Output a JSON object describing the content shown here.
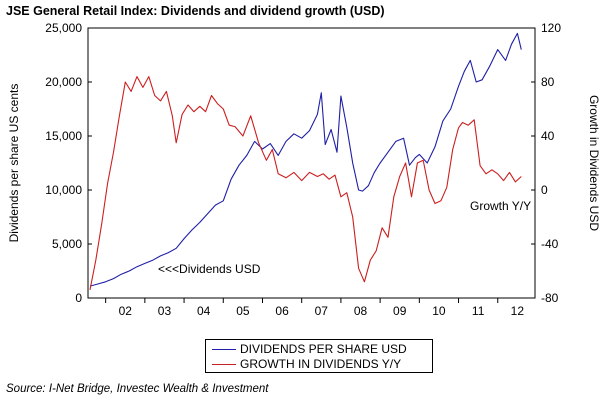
{
  "title": "JSE General Retail Index: Dividends and dividend growth (USD)",
  "source": "Source: I-Net Bridge, Investec Wealth & Investment",
  "colors": {
    "dividends": "#1f1fa8",
    "growth": "#cc1f1f"
  },
  "chart_data": {
    "type": "line",
    "x_labels": [
      "02",
      "03",
      "04",
      "05",
      "06",
      "07",
      "08",
      "09",
      "10",
      "11",
      "12"
    ],
    "xlim": [
      2001.55,
      2012.95
    ],
    "left_axis": {
      "label": "Dividends per share US cents",
      "ylim": [
        0,
        25000
      ],
      "ticks": [
        "0",
        "5,000",
        "10,000",
        "15,000",
        "20,000",
        "25,000"
      ]
    },
    "right_axis": {
      "label": "Growth in Dividends USD",
      "ylim": [
        -80,
        120
      ],
      "ticks": [
        "-80",
        "-40",
        "0",
        "40",
        "80",
        "120"
      ]
    },
    "annotations": [
      {
        "text": "<<<Dividends USD"
      },
      {
        "text": "Growth Y/Y"
      }
    ],
    "legend": {
      "placement": "bottom",
      "entries": [
        "DIVIDENDS PER SHARE USD",
        "GROWTH IN DIVIDENDS Y/Y"
      ]
    },
    "series": [
      {
        "name": "DIVIDENDS PER SHARE USD",
        "axis": "left",
        "x": [
          2001.6,
          2001.8,
          2002.0,
          2002.2,
          2002.4,
          2002.6,
          2002.8,
          2003.0,
          2003.2,
          2003.4,
          2003.6,
          2003.8,
          2004.0,
          2004.2,
          2004.4,
          2004.6,
          2004.8,
          2005.0,
          2005.2,
          2005.4,
          2005.6,
          2005.8,
          2006.0,
          2006.2,
          2006.4,
          2006.6,
          2006.8,
          2007.0,
          2007.2,
          2007.4,
          2007.5,
          2007.6,
          2007.75,
          2007.9,
          2008.0,
          2008.15,
          2008.3,
          2008.45,
          2008.55,
          2008.7,
          2008.85,
          2009.0,
          2009.2,
          2009.4,
          2009.6,
          2009.75,
          2009.9,
          2010.0,
          2010.2,
          2010.4,
          2010.6,
          2010.8,
          2011.0,
          2011.15,
          2011.3,
          2011.45,
          2011.6,
          2011.8,
          2012.0,
          2012.2,
          2012.35,
          2012.5,
          2012.6
        ],
        "values": [
          1100,
          1300,
          1500,
          1800,
          2200,
          2500,
          2900,
          3200,
          3500,
          3900,
          4200,
          4600,
          5500,
          6300,
          7000,
          7800,
          8600,
          9000,
          11000,
          12300,
          13200,
          14500,
          13800,
          14300,
          13200,
          14500,
          15200,
          14800,
          15500,
          17000,
          19000,
          14200,
          15600,
          13500,
          18700,
          15800,
          12500,
          10000,
          9900,
          10400,
          11600,
          12500,
          13500,
          14500,
          14800,
          12300,
          13000,
          13300,
          12500,
          14000,
          16400,
          17500,
          19600,
          21000,
          22000,
          20000,
          20200,
          21500,
          23000,
          22000,
          23500,
          24500,
          23000
        ]
      },
      {
        "name": "GROWTH IN DIVIDENDS Y/Y",
        "axis": "right",
        "x": [
          2001.6,
          2001.75,
          2001.9,
          2002.05,
          2002.2,
          2002.35,
          2002.5,
          2002.65,
          2002.8,
          2002.95,
          2003.1,
          2003.25,
          2003.4,
          2003.55,
          2003.7,
          2003.8,
          2003.95,
          2004.1,
          2004.25,
          2004.4,
          2004.55,
          2004.7,
          2004.85,
          2005.0,
          2005.15,
          2005.3,
          2005.5,
          2005.7,
          2005.9,
          2006.1,
          2006.25,
          2006.4,
          2006.6,
          2006.8,
          2007.0,
          2007.2,
          2007.4,
          2007.55,
          2007.7,
          2007.85,
          2008.0,
          2008.15,
          2008.3,
          2008.45,
          2008.6,
          2008.75,
          2008.9,
          2009.05,
          2009.2,
          2009.35,
          2009.5,
          2009.65,
          2009.8,
          2009.95,
          2010.1,
          2010.25,
          2010.4,
          2010.55,
          2010.7,
          2010.85,
          2011.0,
          2011.1,
          2011.25,
          2011.4,
          2011.55,
          2011.7,
          2011.85,
          2012.0,
          2012.15,
          2012.3,
          2012.45,
          2012.6
        ],
        "values": [
          -74,
          -52,
          -25,
          5,
          28,
          55,
          80,
          73,
          84,
          76,
          84,
          70,
          66,
          73,
          55,
          35,
          56,
          63,
          58,
          62,
          58,
          70,
          64,
          60,
          48,
          47,
          40,
          55,
          35,
          22,
          30,
          12,
          9,
          13,
          7,
          13,
          10,
          12,
          8,
          11,
          -5,
          -2,
          -20,
          -58,
          -68,
          -52,
          -45,
          -28,
          -35,
          -5,
          10,
          20,
          -5,
          20,
          22,
          0,
          -10,
          -8,
          2,
          30,
          46,
          50,
          48,
          52,
          18,
          12,
          15,
          12,
          7,
          13,
          6,
          10
        ]
      }
    ]
  }
}
